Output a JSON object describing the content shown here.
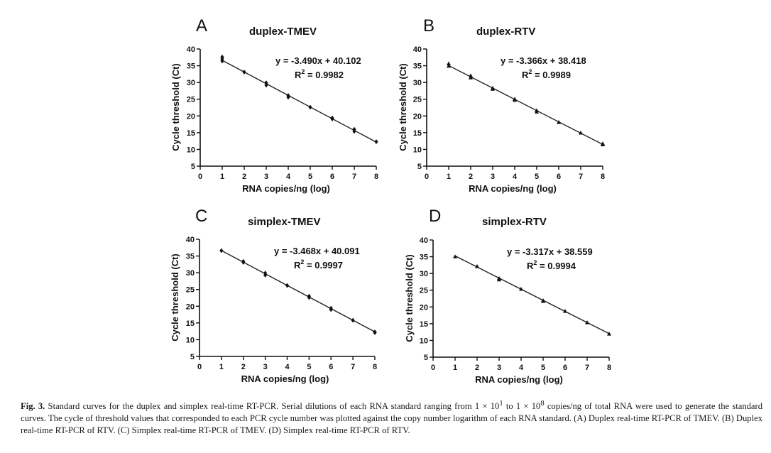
{
  "chart_data": [
    {
      "id": "A",
      "type": "scatter",
      "panel_letter": "A",
      "title": "duplex-TMEV",
      "xlabel": "RNA copies/ng (log)",
      "ylabel": "Cycle threshold (Ct)",
      "xlim": [
        0,
        8
      ],
      "ylim": [
        5,
        40
      ],
      "xticks": [
        0,
        1,
        2,
        3,
        4,
        5,
        6,
        7,
        8
      ],
      "yticks": [
        5,
        10,
        15,
        20,
        25,
        30,
        35,
        40
      ],
      "marker": "diamond",
      "points": [
        {
          "x": 1,
          "y": 37.6
        },
        {
          "x": 1,
          "y": 37.0
        },
        {
          "x": 1,
          "y": 36.4
        },
        {
          "x": 2,
          "y": 33.1
        },
        {
          "x": 3,
          "y": 29.9
        },
        {
          "x": 3,
          "y": 29.2
        },
        {
          "x": 4,
          "y": 26.1
        },
        {
          "x": 4,
          "y": 25.6
        },
        {
          "x": 5,
          "y": 22.6
        },
        {
          "x": 6,
          "y": 19.4
        },
        {
          "x": 6,
          "y": 19.1
        },
        {
          "x": 7,
          "y": 16.0
        },
        {
          "x": 7,
          "y": 15.4
        },
        {
          "x": 8,
          "y": 12.3
        }
      ],
      "fit": {
        "slope": -3.49,
        "intercept": 40.102
      },
      "equation": "y = -3.490x + 40.102",
      "r2_label": "R",
      "r2_exponent": "2",
      "r2_value": " = 0.9982"
    },
    {
      "id": "B",
      "type": "scatter",
      "panel_letter": "B",
      "title": "duplex-RTV",
      "xlabel": "RNA copies/ng (log)",
      "ylabel": "Cycle threshold (Ct)",
      "xlim": [
        0,
        8
      ],
      "ylim": [
        5,
        40
      ],
      "xticks": [
        0,
        1,
        2,
        3,
        4,
        5,
        6,
        7,
        8
      ],
      "yticks": [
        5,
        10,
        15,
        20,
        25,
        30,
        35,
        40
      ],
      "marker": "triangle",
      "points": [
        {
          "x": 1,
          "y": 35.6
        },
        {
          "x": 1,
          "y": 34.9
        },
        {
          "x": 2,
          "y": 32.0
        },
        {
          "x": 2,
          "y": 31.4
        },
        {
          "x": 3,
          "y": 28.3
        },
        {
          "x": 3,
          "y": 28.0
        },
        {
          "x": 4,
          "y": 25.0
        },
        {
          "x": 4,
          "y": 24.7
        },
        {
          "x": 5,
          "y": 21.6
        },
        {
          "x": 5,
          "y": 21.2
        },
        {
          "x": 6,
          "y": 18.1
        },
        {
          "x": 7,
          "y": 14.9
        },
        {
          "x": 8,
          "y": 11.7
        },
        {
          "x": 8,
          "y": 11.4
        }
      ],
      "fit": {
        "slope": -3.366,
        "intercept": 38.418
      },
      "equation": "y = -3.366x + 38.418",
      "r2_label": "R",
      "r2_exponent": "2",
      "r2_value": " = 0.9989"
    },
    {
      "id": "C",
      "type": "scatter",
      "panel_letter": "C",
      "title": "simplex-TMEV",
      "xlabel": "RNA copies/ng (log)",
      "ylabel": "Cycle threshold (Ct)",
      "xlim": [
        0,
        8
      ],
      "ylim": [
        5,
        40
      ],
      "xticks": [
        0,
        1,
        2,
        3,
        4,
        5,
        6,
        7,
        8
      ],
      "yticks": [
        5,
        10,
        15,
        20,
        25,
        30,
        35,
        40
      ],
      "marker": "diamond",
      "points": [
        {
          "x": 1,
          "y": 36.6
        },
        {
          "x": 2,
          "y": 33.4
        },
        {
          "x": 2,
          "y": 33.1
        },
        {
          "x": 3,
          "y": 29.9
        },
        {
          "x": 3,
          "y": 29.3
        },
        {
          "x": 4,
          "y": 26.2
        },
        {
          "x": 5,
          "y": 23.0
        },
        {
          "x": 5,
          "y": 22.6
        },
        {
          "x": 6,
          "y": 19.4
        },
        {
          "x": 6,
          "y": 19.0
        },
        {
          "x": 7,
          "y": 15.8
        },
        {
          "x": 8,
          "y": 12.3
        },
        {
          "x": 8,
          "y": 12.1
        }
      ],
      "fit": {
        "slope": -3.468,
        "intercept": 40.091
      },
      "equation": "y = -3.468x + 40.091",
      "r2_label": "R",
      "r2_exponent": "2",
      "r2_value": " = 0.9997"
    },
    {
      "id": "D",
      "type": "scatter",
      "panel_letter": "D",
      "title": "simplex-RTV",
      "xlabel": "RNA copies/ng (log)",
      "ylabel": "Cycle threshold (Ct)",
      "xlim": [
        0,
        8
      ],
      "ylim": [
        5,
        40
      ],
      "xticks": [
        0,
        1,
        2,
        3,
        4,
        5,
        6,
        7,
        8
      ],
      "yticks": [
        5,
        10,
        15,
        20,
        25,
        30,
        35,
        40
      ],
      "marker": "triangle",
      "points": [
        {
          "x": 1,
          "y": 35.0
        },
        {
          "x": 2,
          "y": 32.1
        },
        {
          "x": 3,
          "y": 28.5
        },
        {
          "x": 3,
          "y": 28.1
        },
        {
          "x": 4,
          "y": 25.3
        },
        {
          "x": 5,
          "y": 21.9
        },
        {
          "x": 5,
          "y": 21.7
        },
        {
          "x": 6,
          "y": 18.7
        },
        {
          "x": 7,
          "y": 15.3
        },
        {
          "x": 8,
          "y": 11.9
        }
      ],
      "fit": {
        "slope": -3.317,
        "intercept": 38.559
      },
      "equation": "y = -3.317x + 38.559",
      "r2_label": "R",
      "r2_exponent": "2",
      "r2_value": " = 0.9994"
    }
  ],
  "caption": {
    "fig_label": "Fig. 3.",
    "text_part1": " Standard curves for the duplex and simplex real-time RT-PCR. Serial dilutions of each RNA standard ranging from 1 × 10",
    "sup1": "1",
    "text_part2": " to 1 × 10",
    "sup2": "8",
    "text_part3": " copies/ng of total RNA were used to generate the standard curves. The cycle of threshold values that corresponded to each PCR cycle number was plotted against the copy number logarithm of each RNA standard. (A) Duplex real-time RT-PCR of TMEV. (B) Duplex real-time RT-PCR of RTV. (C) Simplex real-time RT-PCR of TMEV. (D) Simplex real-time RT-PCR of RTV."
  }
}
